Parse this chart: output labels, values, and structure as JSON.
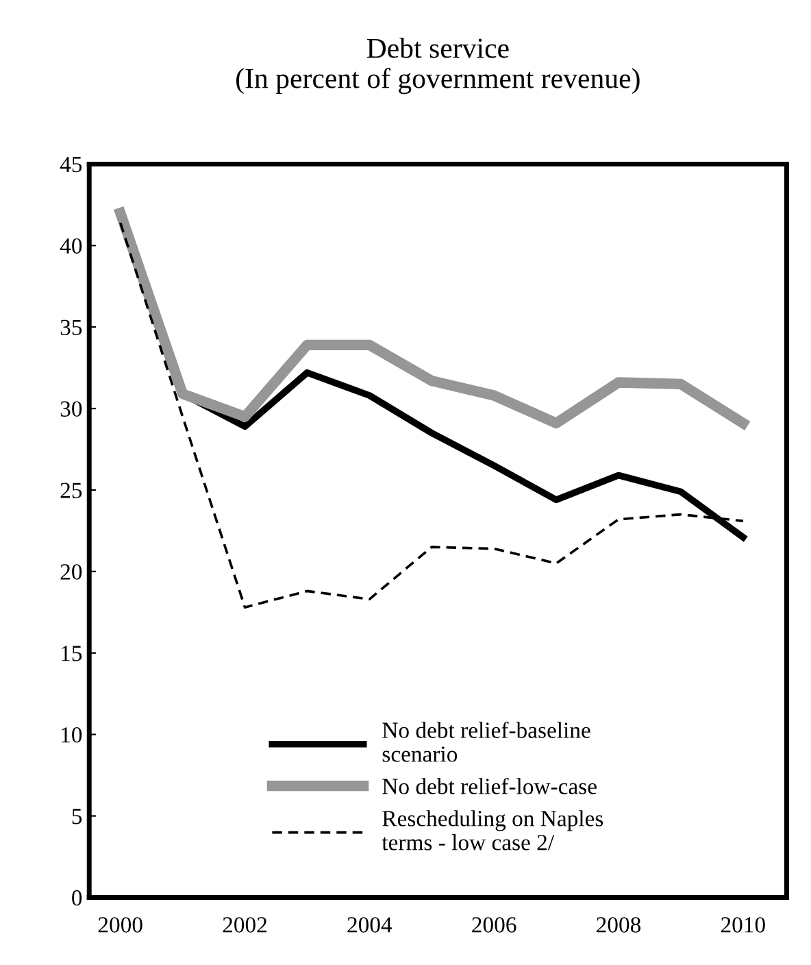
{
  "chart_data": {
    "type": "line",
    "title": "Debt service\n(In percent of government revenue)",
    "x": [
      2000,
      2001,
      2002,
      2003,
      2004,
      2005,
      2006,
      2007,
      2008,
      2009,
      2010
    ],
    "series": [
      {
        "name": "No debt relief-baseline\nscenario",
        "color": "#000000",
        "values": [
          null,
          30.9,
          28.9,
          32.2,
          30.8,
          28.5,
          26.5,
          24.4,
          25.9,
          24.9,
          22.1
        ]
      },
      {
        "name": "No debt relief-low-case",
        "color": "#969696",
        "values": [
          42.0,
          30.9,
          29.5,
          33.9,
          33.9,
          31.7,
          30.8,
          29.1,
          31.6,
          31.5,
          29.1
        ]
      },
      {
        "name": "Rescheduling on Naples\nterms - low case 2/",
        "color": "#000000",
        "line_style": "dashed",
        "values": [
          41.4,
          29.5,
          17.8,
          18.8,
          18.3,
          21.5,
          21.4,
          20.5,
          23.2,
          23.5,
          23.1
        ]
      }
    ],
    "xlim": [
      1999.5,
      2010.7
    ],
    "xticks": [
      2000,
      2002,
      2004,
      2006,
      2008,
      2010
    ],
    "ylim": [
      0,
      45
    ],
    "yticks": [
      0,
      5,
      10,
      15,
      20,
      25,
      30,
      35,
      40,
      45
    ],
    "grid": false,
    "legend": "bottom",
    "marker": "none"
  }
}
